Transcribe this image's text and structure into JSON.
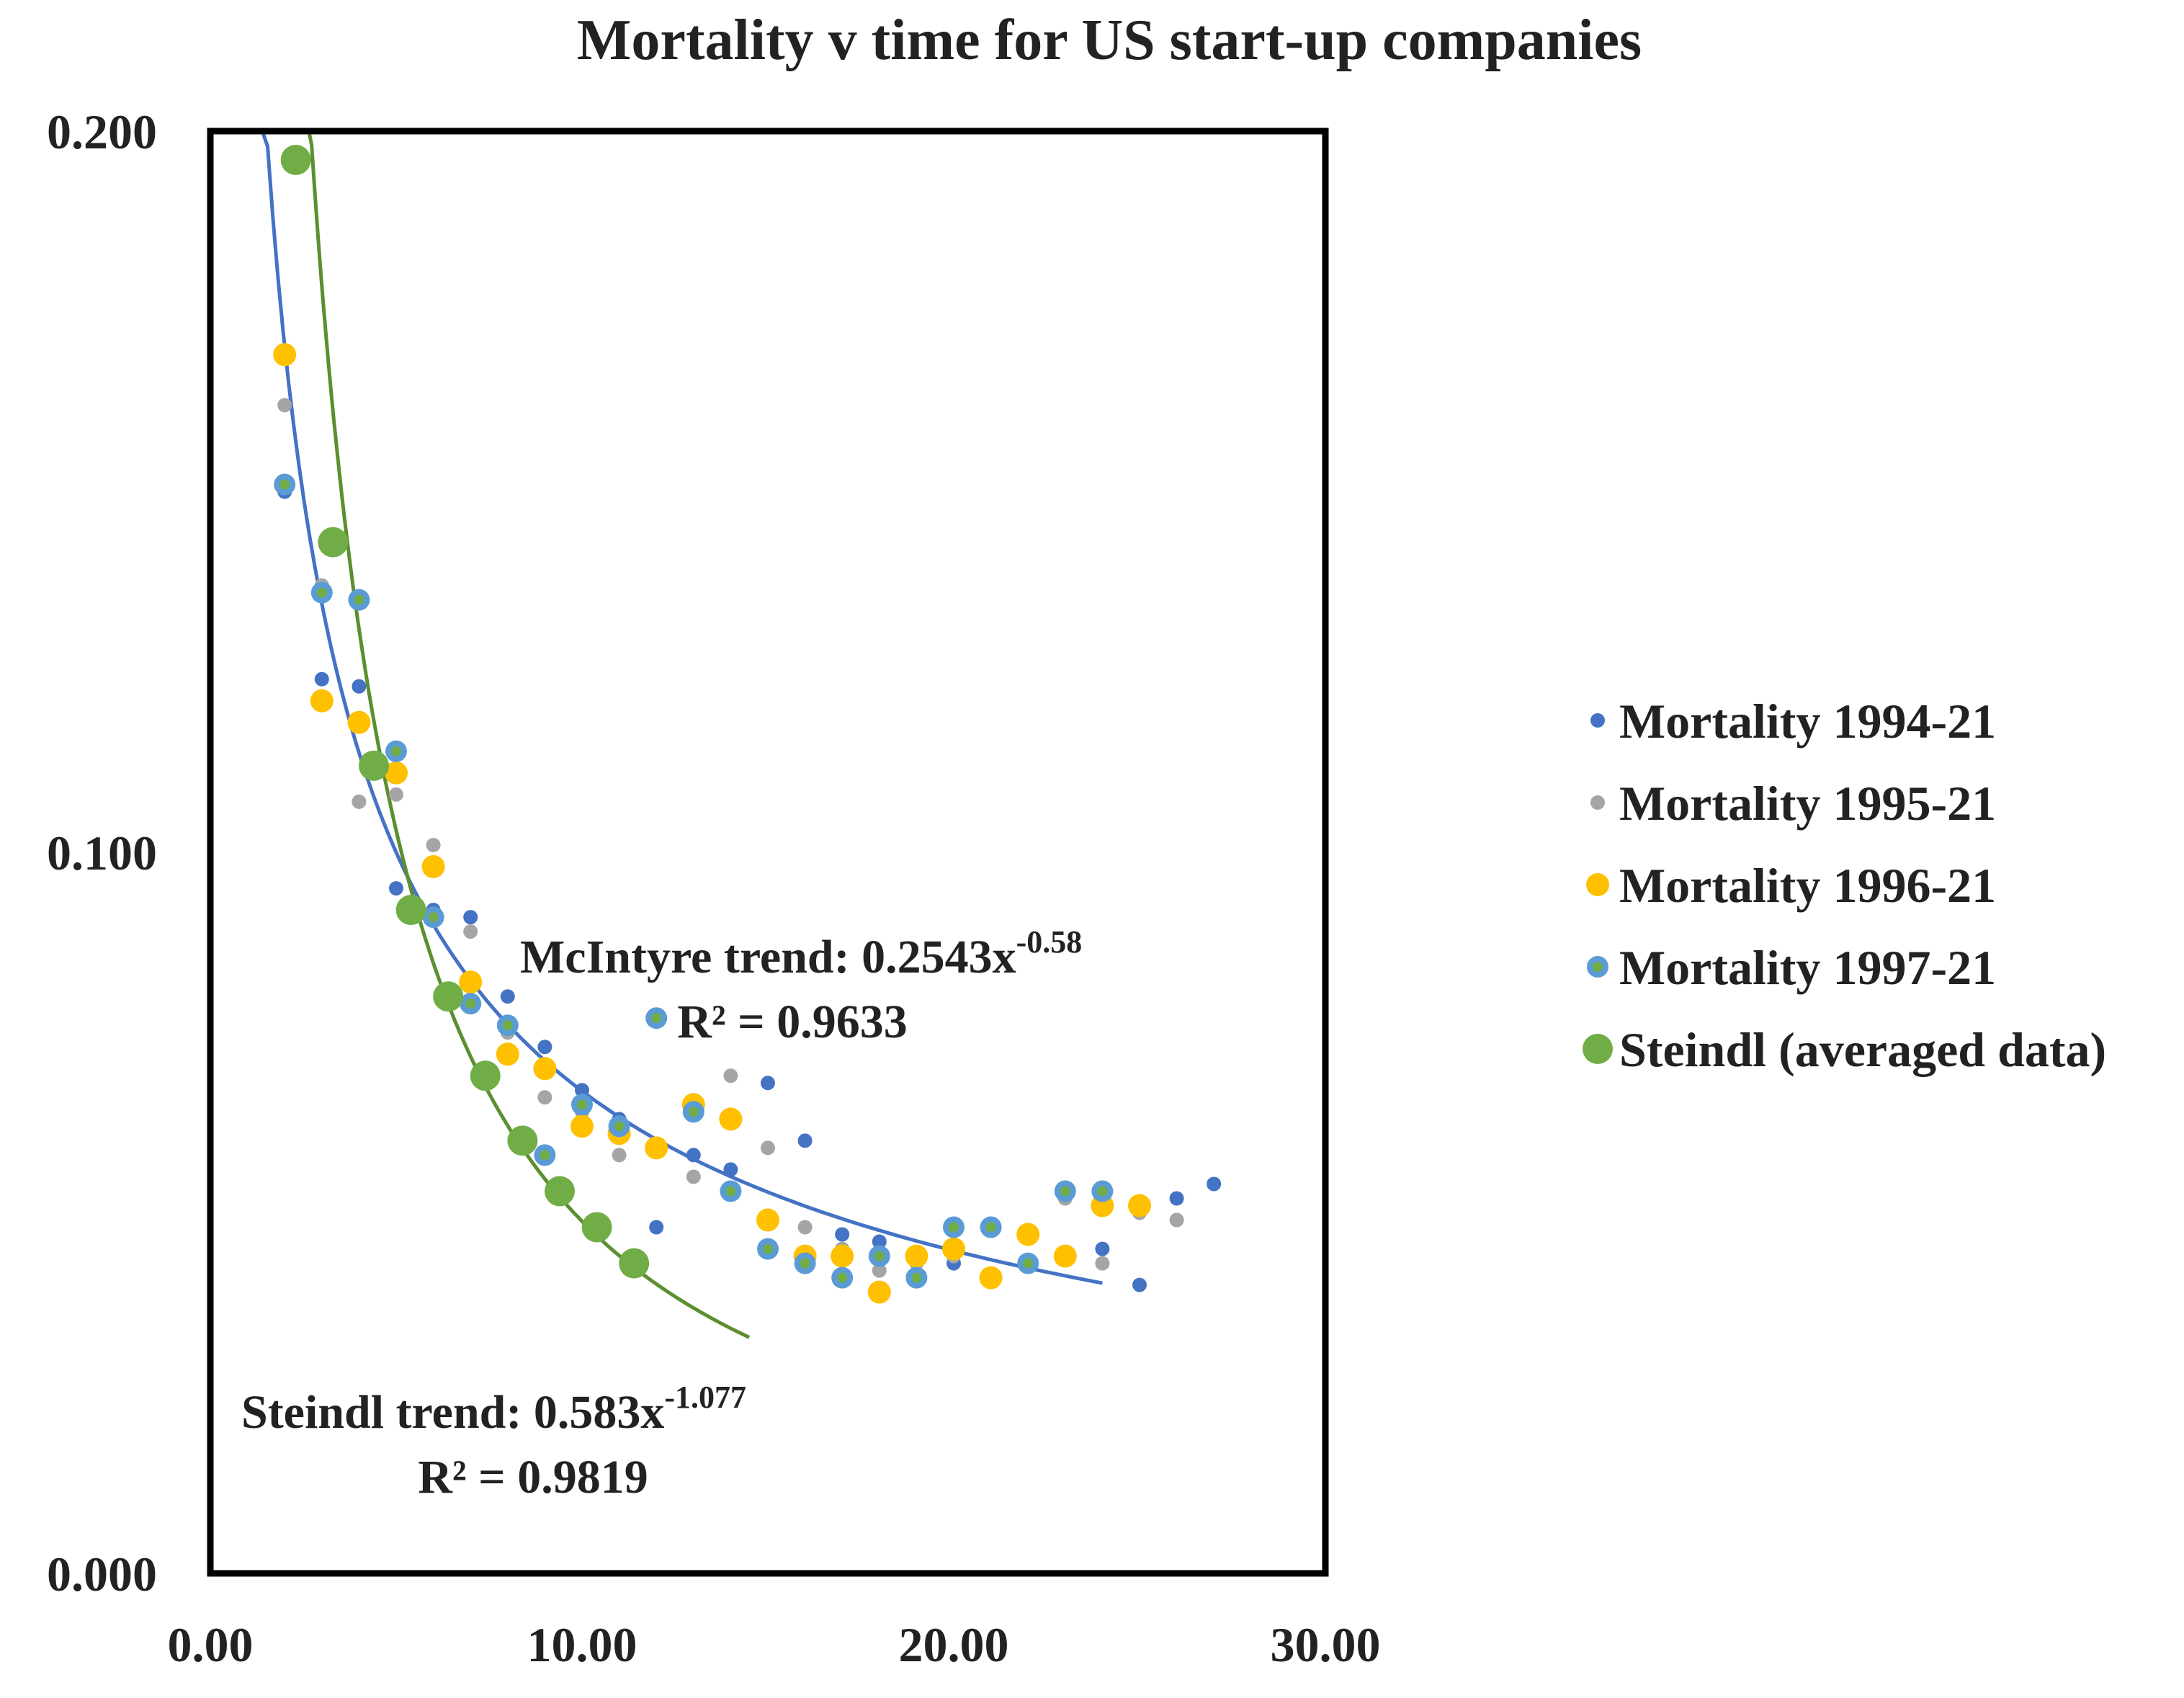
{
  "chart_data": {
    "type": "scatter",
    "title": "Mortality v time for US start-up companies",
    "xlabel": "",
    "ylabel": "",
    "xlim": [
      0,
      30
    ],
    "ylim": [
      0,
      0.2
    ],
    "x_ticks": [
      "0.00",
      "10.00",
      "20.00",
      "30.00"
    ],
    "y_ticks": [
      "0.000",
      "0.100",
      "0.200"
    ],
    "grid": false,
    "legend_position": "right",
    "series": [
      {
        "name": "Mortality 1994-21",
        "color": "#4472C4",
        "marker": "small",
        "points": [
          [
            2,
            0.15
          ],
          [
            3,
            0.124
          ],
          [
            4,
            0.123
          ],
          [
            5,
            0.095
          ],
          [
            6,
            0.092
          ],
          [
            7,
            0.091
          ],
          [
            8,
            0.08
          ],
          [
            9,
            0.073
          ],
          [
            10,
            0.067
          ],
          [
            11,
            0.063
          ],
          [
            12,
            0.048
          ],
          [
            13,
            0.058
          ],
          [
            14,
            0.056
          ],
          [
            15,
            0.068
          ],
          [
            16,
            0.06
          ],
          [
            17,
            0.047
          ],
          [
            18,
            0.046
          ],
          [
            19,
            0.044
          ],
          [
            20,
            0.043
          ],
          [
            21,
            0.041
          ],
          [
            22,
            0.043
          ],
          [
            23,
            0.053
          ],
          [
            24,
            0.045
          ],
          [
            25,
            0.04
          ],
          [
            26,
            0.052
          ],
          [
            27,
            0.054
          ]
        ]
      },
      {
        "name": "Mortality 1995-21",
        "color": "#A5A5A5",
        "marker": "small",
        "points": [
          [
            2,
            0.162
          ],
          [
            3,
            0.137
          ],
          [
            4,
            0.107
          ],
          [
            5,
            0.108
          ],
          [
            6,
            0.101
          ],
          [
            7,
            0.089
          ],
          [
            8,
            0.075
          ],
          [
            9,
            0.066
          ],
          [
            10,
            0.064
          ],
          [
            11,
            0.058
          ],
          [
            12,
            0.059
          ],
          [
            13,
            0.055
          ],
          [
            14,
            0.069
          ],
          [
            15,
            0.059
          ],
          [
            16,
            0.048
          ],
          [
            17,
            0.045
          ],
          [
            18,
            0.042
          ],
          [
            19,
            0.043
          ],
          [
            20,
            0.044
          ],
          [
            21,
            0.041
          ],
          [
            22,
            0.043
          ],
          [
            23,
            0.052
          ],
          [
            24,
            0.043
          ],
          [
            25,
            0.05
          ],
          [
            26,
            0.049
          ]
        ]
      },
      {
        "name": "Mortality 1996-21",
        "color": "#FFC000",
        "marker": "medium",
        "points": [
          [
            2,
            0.169
          ],
          [
            3,
            0.121
          ],
          [
            4,
            0.118
          ],
          [
            5,
            0.111
          ],
          [
            6,
            0.098
          ],
          [
            7,
            0.082
          ],
          [
            8,
            0.072
          ],
          [
            9,
            0.07
          ],
          [
            10,
            0.062
          ],
          [
            11,
            0.061
          ],
          [
            12,
            0.059
          ],
          [
            13,
            0.065
          ],
          [
            14,
            0.063
          ],
          [
            15,
            0.049
          ],
          [
            16,
            0.044
          ],
          [
            17,
            0.044
          ],
          [
            18,
            0.039
          ],
          [
            19,
            0.044
          ],
          [
            20,
            0.045
          ],
          [
            21,
            0.041
          ],
          [
            22,
            0.047
          ],
          [
            23,
            0.044
          ],
          [
            24,
            0.051
          ],
          [
            25,
            0.051
          ]
        ]
      },
      {
        "name": "Mortality 1997-21",
        "color": "#5B9BD5",
        "marker": "ringed",
        "points": [
          [
            2,
            0.151
          ],
          [
            3,
            0.136
          ],
          [
            4,
            0.135
          ],
          [
            5,
            0.114
          ],
          [
            6,
            0.091
          ],
          [
            7,
            0.079
          ],
          [
            8,
            0.076
          ],
          [
            9,
            0.058
          ],
          [
            10,
            0.065
          ],
          [
            11,
            0.062
          ],
          [
            12,
            0.077
          ],
          [
            13,
            0.064
          ],
          [
            14,
            0.053
          ],
          [
            15,
            0.045
          ],
          [
            16,
            0.043
          ],
          [
            17,
            0.041
          ],
          [
            18,
            0.044
          ],
          [
            19,
            0.041
          ],
          [
            20,
            0.048
          ],
          [
            21,
            0.048
          ],
          [
            22,
            0.043
          ],
          [
            23,
            0.053
          ],
          [
            24,
            0.053
          ]
        ]
      },
      {
        "name": "Steindl (averaged data)",
        "color": "#70AD47",
        "marker": "large",
        "points": [
          [
            2.3,
            0.196
          ],
          [
            3.3,
            0.143
          ],
          [
            4.4,
            0.112
          ],
          [
            5.4,
            0.092
          ],
          [
            6.4,
            0.08
          ],
          [
            7.4,
            0.069
          ],
          [
            8.4,
            0.06
          ],
          [
            9.4,
            0.053
          ],
          [
            10.4,
            0.048
          ],
          [
            11.4,
            0.043
          ]
        ]
      }
    ],
    "trendlines": [
      {
        "name": "McIntyre trend",
        "color": "#4472C4",
        "coefficient": 0.2543,
        "exponent": -0.58,
        "x_range": [
          1.4,
          24
        ],
        "label_main": "McIntyre trend: 0.2543x",
        "label_exp": "-0.58",
        "label_r2": "R² = 0.9633"
      },
      {
        "name": "Steindl trend",
        "color": "#5B8F2F",
        "coefficient": 0.583,
        "exponent": -1.077,
        "x_range": [
          2.65,
          14.5
        ],
        "label_main": "Steindl trend: 0.583x",
        "label_exp": "-1.077",
        "label_r2": "R² = 0.9819"
      }
    ]
  }
}
